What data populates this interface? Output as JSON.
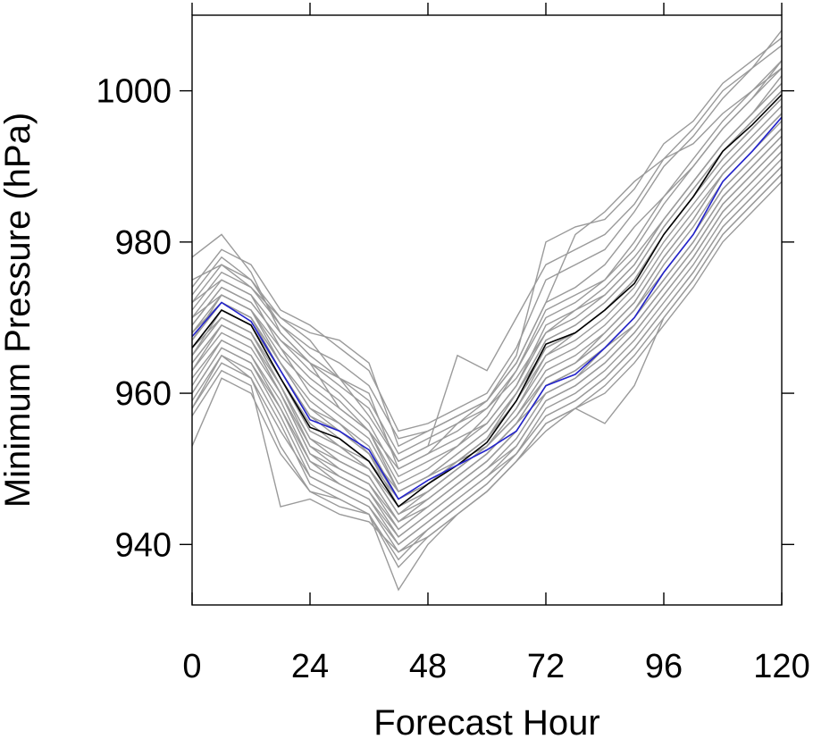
{
  "chart_data": {
    "type": "line",
    "title": "",
    "xlabel": "Forecast Hour",
    "ylabel": "Minimum Pressure (hPa)",
    "xlim": [
      0,
      120
    ],
    "ylim": [
      932,
      1010
    ],
    "x": [
      0,
      6,
      12,
      18,
      24,
      30,
      36,
      42,
      48,
      54,
      60,
      66,
      72,
      78,
      84,
      90,
      96,
      102,
      108,
      114,
      120
    ],
    "x_ticks": [
      "0",
      "24",
      "48",
      "72",
      "96",
      "120"
    ],
    "x_tick_values": [
      0,
      24,
      48,
      72,
      96,
      120
    ],
    "y_ticks": [
      "940",
      "960",
      "980",
      "1000"
    ],
    "y_tick_values": [
      940,
      960,
      980,
      1000
    ],
    "grid": false,
    "colors": {
      "members": "#9a9a9a",
      "mean": "#000000",
      "highlight": "#2222cc"
    },
    "highlight_series": [
      967.5,
      972,
      969.5,
      963,
      956.5,
      955,
      952.5,
      946,
      948.5,
      950.5,
      952.5,
      955,
      961,
      962.5,
      966,
      970,
      976,
      981,
      988,
      992,
      996.5
    ],
    "mean_series": [
      966,
      971,
      969,
      962,
      955.5,
      954,
      951,
      945,
      948,
      950.5,
      953.5,
      959,
      966.5,
      968,
      971,
      974.5,
      981,
      986,
      992,
      995.5,
      999.5
    ],
    "members": [
      [
        978,
        981,
        976,
        968,
        964,
        958,
        955,
        950,
        952,
        956,
        959,
        964,
        972,
        974,
        977,
        982,
        986,
        990,
        995,
        999,
        1004
      ],
      [
        975,
        977,
        974,
        970,
        967,
        962,
        957,
        951,
        953,
        955,
        958,
        962,
        968,
        971,
        974,
        978,
        983,
        988,
        993,
        997,
        1002
      ],
      [
        972,
        975,
        973,
        966,
        960,
        957,
        954,
        947,
        949,
        951,
        954,
        959,
        965,
        968,
        971,
        975,
        981,
        986,
        991,
        995,
        999
      ],
      [
        970,
        973,
        971,
        964,
        958,
        956,
        953,
        946,
        948,
        951,
        954,
        960,
        967,
        969,
        972,
        976,
        982,
        987,
        992,
        996,
        1000
      ],
      [
        968,
        972,
        970,
        963,
        957,
        955,
        952,
        945,
        947,
        950,
        953,
        958,
        964,
        966,
        969,
        973,
        979,
        984,
        989,
        993,
        997
      ],
      [
        965,
        970,
        968,
        962,
        955,
        953,
        950,
        944,
        946,
        949,
        952,
        956,
        962,
        964,
        967,
        971,
        977,
        982,
        988,
        992,
        996
      ],
      [
        963,
        968,
        966,
        960,
        953,
        951,
        949,
        943,
        945,
        948,
        951,
        955,
        961,
        963,
        966,
        970,
        976,
        981,
        987,
        991,
        995
      ],
      [
        960,
        966,
        964,
        958,
        951,
        949,
        947,
        941,
        944,
        947,
        950,
        954,
        960,
        962,
        965,
        969,
        974,
        979,
        985,
        989,
        993
      ],
      [
        958,
        964,
        962,
        955,
        949,
        947,
        945,
        939,
        942,
        945,
        948,
        952,
        958,
        960,
        963,
        967,
        972,
        977,
        983,
        987,
        991
      ],
      [
        953,
        962,
        960,
        952,
        947,
        946,
        944,
        934,
        940,
        944,
        947,
        951,
        956,
        958,
        961,
        965,
        970,
        975,
        981,
        985,
        989
      ],
      [
        974,
        979,
        977,
        971,
        969,
        966,
        963,
        955,
        956,
        958,
        960,
        966,
        975,
        977,
        979,
        984,
        990,
        994,
        999,
        1003,
        1008
      ],
      [
        971,
        976,
        974,
        969,
        965,
        962,
        959,
        952,
        954,
        956,
        958,
        963,
        970,
        972,
        975,
        980,
        986,
        991,
        996,
        1000,
        1004
      ],
      [
        969,
        974,
        972,
        967,
        963,
        960,
        956,
        949,
        951,
        953,
        956,
        961,
        968,
        970,
        973,
        977,
        983,
        988,
        993,
        997,
        1001
      ],
      [
        967,
        972,
        970,
        964,
        959,
        956,
        952,
        947,
        949,
        952,
        955,
        960,
        967,
        969,
        972,
        976,
        982,
        987,
        992,
        996,
        1000
      ],
      [
        966,
        970,
        968,
        961,
        954,
        952,
        950,
        944,
        947,
        950,
        953,
        957,
        963,
        965,
        968,
        972,
        978,
        983,
        989,
        993,
        997
      ],
      [
        964,
        969,
        967,
        960,
        952,
        950,
        948,
        942,
        945,
        948,
        951,
        955,
        961,
        963,
        966,
        970,
        975,
        980,
        986,
        990,
        994
      ],
      [
        962,
        967,
        965,
        958,
        950,
        948,
        946,
        940,
        943,
        946,
        949,
        953,
        959,
        961,
        964,
        968,
        973,
        978,
        984,
        988,
        992
      ],
      [
        959,
        965,
        963,
        956,
        948,
        946,
        944,
        938,
        942,
        945,
        948,
        952,
        957,
        959,
        962,
        966,
        971,
        976,
        982,
        986,
        990
      ],
      [
        957,
        963,
        961,
        945,
        946,
        944,
        943,
        939,
        941,
        944,
        947,
        951,
        955,
        958,
        960,
        964,
        969,
        974,
        980,
        984,
        988
      ],
      [
        973,
        978,
        975,
        969,
        966,
        964,
        961,
        954,
        955,
        957,
        959,
        965,
        980,
        982,
        983,
        987,
        993,
        996,
        1001,
        1004,
        1007
      ],
      [
        970,
        975,
        973,
        968,
        964,
        961,
        958,
        951,
        953,
        965,
        963,
        970,
        977,
        979,
        981,
        985,
        991,
        995,
        1000,
        1003,
        1006
      ],
      [
        968,
        973,
        971,
        966,
        962,
        959,
        955,
        948,
        950,
        953,
        957,
        963,
        971,
        973,
        975,
        979,
        985,
        990,
        995,
        999,
        1003
      ],
      [
        966,
        971,
        969,
        963,
        957,
        954,
        951,
        946,
        948,
        951,
        954,
        959,
        966,
        968,
        971,
        975,
        981,
        986,
        991,
        995,
        999
      ],
      [
        964,
        969,
        967,
        961,
        953,
        950,
        948,
        943,
        946,
        949,
        952,
        956,
        962,
        964,
        967,
        971,
        976,
        981,
        987,
        991,
        995
      ],
      [
        961,
        967,
        965,
        959,
        951,
        948,
        946,
        941,
        944,
        947,
        950,
        953,
        959,
        961,
        964,
        968,
        973,
        978,
        984,
        988,
        992
      ],
      [
        958,
        965,
        962,
        953,
        947,
        945,
        944,
        937,
        941,
        944,
        947,
        951,
        956,
        958,
        956,
        961,
        970,
        975,
        981,
        985,
        989
      ],
      [
        972,
        977,
        975,
        970,
        968,
        967,
        964,
        953,
        955,
        957,
        959,
        964,
        972,
        981,
        984,
        988,
        991,
        993,
        997,
        1000,
        1003
      ],
      [
        969,
        974,
        972,
        967,
        964,
        962,
        960,
        950,
        952,
        954,
        956,
        961,
        969,
        971,
        973,
        977,
        983,
        988,
        993,
        997,
        1001
      ],
      [
        967,
        973,
        971,
        965,
        961,
        958,
        955,
        947,
        949,
        952,
        955,
        960,
        966,
        968,
        971,
        975,
        981,
        986,
        991,
        995,
        999
      ],
      [
        965,
        971,
        969,
        962,
        956,
        953,
        950,
        945,
        947,
        950,
        953,
        958,
        965,
        967,
        970,
        974,
        980,
        985,
        990,
        994,
        998
      ],
      [
        963,
        969,
        967,
        960,
        952,
        949,
        947,
        942,
        945,
        948,
        951,
        955,
        961,
        963,
        966,
        970,
        975,
        980,
        986,
        990,
        994
      ],
      [
        960,
        966,
        964,
        957,
        949,
        947,
        945,
        940,
        943,
        946,
        949,
        952,
        957,
        959,
        962,
        966,
        971,
        976,
        982,
        986,
        990
      ],
      [
        966,
        971,
        969,
        962,
        955,
        953,
        951,
        945,
        948,
        951,
        954,
        959,
        966,
        968,
        971,
        975,
        981,
        986,
        992,
        996,
        1000
      ],
      [
        968,
        972,
        970,
        964,
        958,
        955,
        952,
        946,
        948,
        951,
        953,
        957,
        962,
        964,
        968,
        972,
        978,
        983,
        989,
        993,
        997
      ],
      [
        965,
        970,
        968,
        961,
        954,
        951,
        949,
        943,
        946,
        949,
        952,
        956,
        960,
        962,
        966,
        969,
        974,
        979,
        985,
        989,
        993
      ]
    ]
  }
}
